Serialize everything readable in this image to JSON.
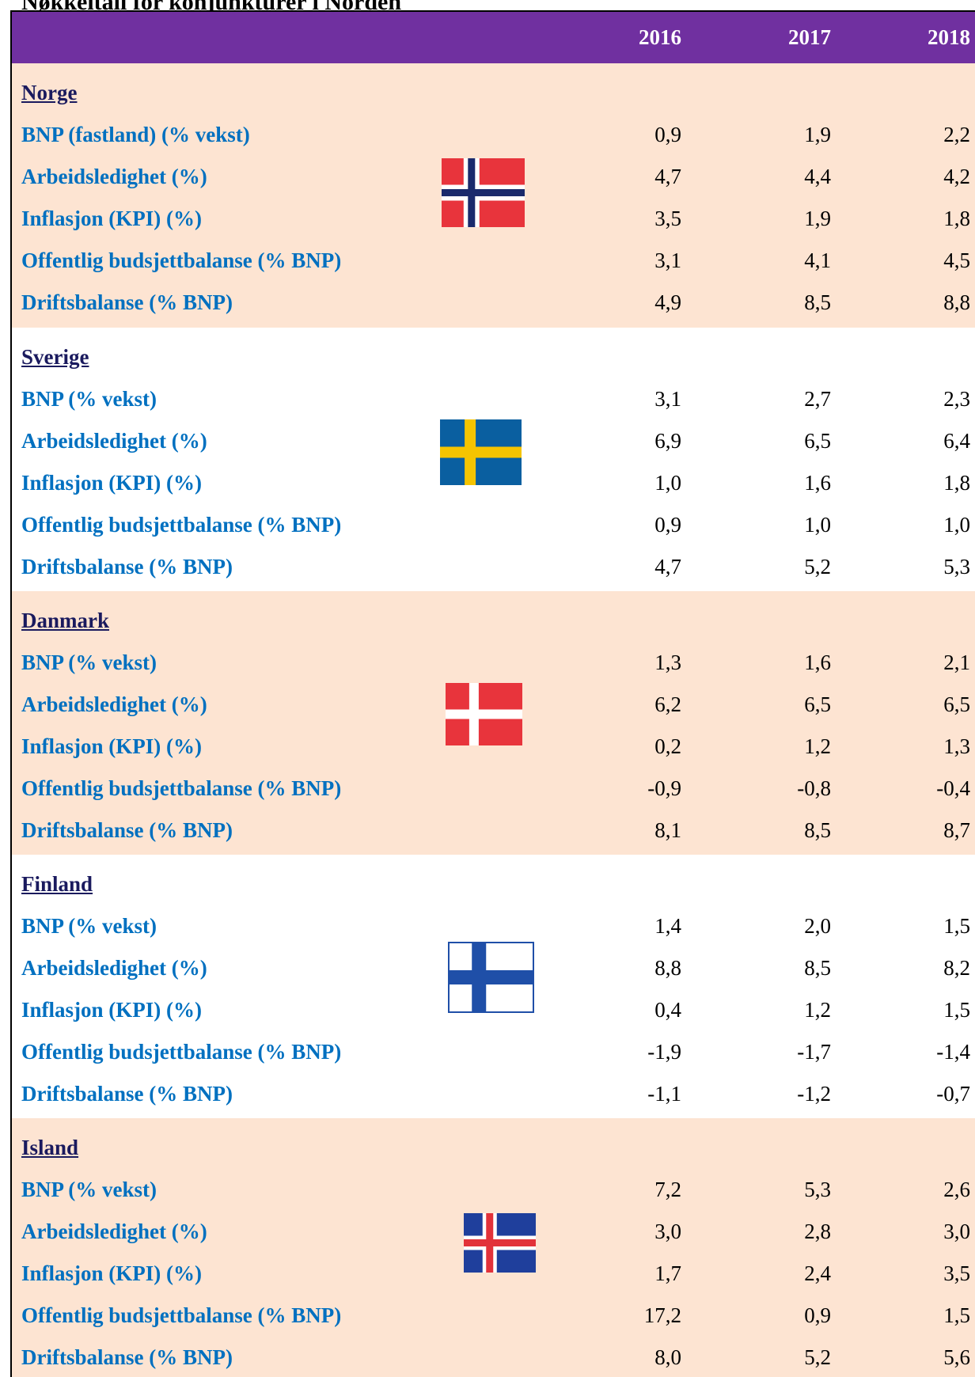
{
  "title": "Nøkkeltall for konjunkturer i Norden",
  "years": [
    "2016",
    "2017",
    "2018"
  ],
  "sections": [
    {
      "country": "Norge",
      "rows": [
        {
          "label": "BNP (fastland) (% vekst)",
          "values": [
            "0,9",
            "1,9",
            "2,2"
          ]
        },
        {
          "label": "Arbeidsledighet (%)",
          "values": [
            "4,7",
            "4,4",
            "4,2"
          ]
        },
        {
          "label": "Inflasjon (KPI) (%)",
          "values": [
            "3,5",
            "1,9",
            "1,8"
          ]
        },
        {
          "label": "Offentlig budsjettbalanse (% BNP)",
          "values": [
            "3,1",
            "4,1",
            "4,5"
          ]
        },
        {
          "label": "Driftsbalanse (% BNP)",
          "values": [
            "4,9",
            "8,5",
            "8,8"
          ]
        }
      ]
    },
    {
      "country": "Sverige",
      "rows": [
        {
          "label": "BNP (% vekst)",
          "values": [
            "3,1",
            "2,7",
            "2,3"
          ]
        },
        {
          "label": "Arbeidsledighet (%)",
          "values": [
            "6,9",
            "6,5",
            "6,4"
          ]
        },
        {
          "label": "Inflasjon (KPI) (%)",
          "values": [
            "1,0",
            "1,6",
            "1,8"
          ]
        },
        {
          "label": "Offentlig budsjettbalanse (% BNP)",
          "values": [
            "0,9",
            "1,0",
            "1,0"
          ]
        },
        {
          "label": "Driftsbalanse (% BNP)",
          "values": [
            "4,7",
            "5,2",
            "5,3"
          ]
        }
      ]
    },
    {
      "country": "Danmark",
      "rows": [
        {
          "label": "BNP (% vekst)",
          "values": [
            "1,3",
            "1,6",
            "2,1"
          ]
        },
        {
          "label": "Arbeidsledighet (%)",
          "values": [
            "6,2",
            "6,5",
            "6,5"
          ]
        },
        {
          "label": "Inflasjon (KPI) (%)",
          "values": [
            "0,2",
            "1,2",
            "1,3"
          ]
        },
        {
          "label": "Offentlig budsjettbalanse (% BNP)",
          "values": [
            "-0,9",
            "-0,8",
            "-0,4"
          ]
        },
        {
          "label": "Driftsbalanse (% BNP)",
          "values": [
            "8,1",
            "8,5",
            "8,7"
          ]
        }
      ]
    },
    {
      "country": "Finland",
      "rows": [
        {
          "label": "BNP (% vekst)",
          "values": [
            "1,4",
            "2,0",
            "1,5"
          ]
        },
        {
          "label": "Arbeidsledighet (%)",
          "values": [
            "8,8",
            "8,5",
            "8,2"
          ]
        },
        {
          "label": "Inflasjon (KPI) (%)",
          "values": [
            "0,4",
            "1,2",
            "1,5"
          ]
        },
        {
          "label": "Offentlig budsjettbalanse (% BNP)",
          "values": [
            "-1,9",
            "-1,7",
            "-1,4"
          ]
        },
        {
          "label": "Driftsbalanse (% BNP)",
          "values": [
            "-1,1",
            "-1,2",
            "-0,7"
          ]
        }
      ]
    },
    {
      "country": "Island",
      "rows": [
        {
          "label": "BNP (% vekst)",
          "values": [
            "7,2",
            "5,3",
            "2,6"
          ]
        },
        {
          "label": "Arbeidsledighet (%)",
          "values": [
            "3,0",
            "2,8",
            "3,0"
          ]
        },
        {
          "label": "Inflasjon (KPI) (%)",
          "values": [
            "1,7",
            "2,4",
            "3,5"
          ]
        },
        {
          "label": "Offentlig budsjettbalanse (% BNP)",
          "values": [
            "17,2",
            "0,9",
            "1,5"
          ]
        },
        {
          "label": "Driftsbalanse (% BNP)",
          "values": [
            "8,0",
            "5,2",
            "5,6"
          ]
        }
      ]
    }
  ]
}
